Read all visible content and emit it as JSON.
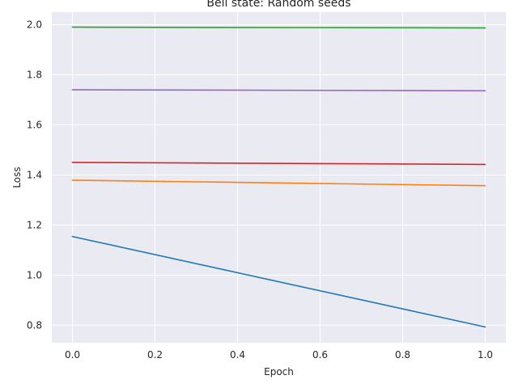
{
  "chart_data": {
    "type": "line",
    "title": "Bell state: Random seeds",
    "xlabel": "Epoch",
    "ylabel": "Loss",
    "xlim": [
      -0.05,
      1.05
    ],
    "ylim": [
      0.73,
      2.05
    ],
    "xticks": [
      0.0,
      0.2,
      0.4,
      0.6,
      0.8,
      1.0
    ],
    "xtick_labels": [
      "0.0",
      "0.2",
      "0.4",
      "0.6",
      "0.8",
      "1.0"
    ],
    "yticks": [
      0.8,
      1.0,
      1.2,
      1.4,
      1.6,
      1.8,
      2.0
    ],
    "ytick_labels": [
      "0.8",
      "1.0",
      "1.2",
      "1.4",
      "1.6",
      "1.8",
      "2.0"
    ],
    "grid": true,
    "legend": "none",
    "background": "#eaeaf2",
    "series": [
      {
        "color": "#1f77b4",
        "x": [
          0,
          1
        ],
        "values": [
          1.154,
          0.793
        ]
      },
      {
        "color": "#ff7f0e",
        "x": [
          0,
          1
        ],
        "values": [
          1.379,
          1.357
        ]
      },
      {
        "color": "#2ca02c",
        "x": [
          0,
          1
        ],
        "values": [
          1.99,
          1.987
        ]
      },
      {
        "color": "#d62728",
        "x": [
          0,
          1
        ],
        "values": [
          1.45,
          1.442
        ]
      },
      {
        "color": "#9467bd",
        "x": [
          0,
          1
        ],
        "values": [
          1.74,
          1.736
        ]
      }
    ]
  }
}
